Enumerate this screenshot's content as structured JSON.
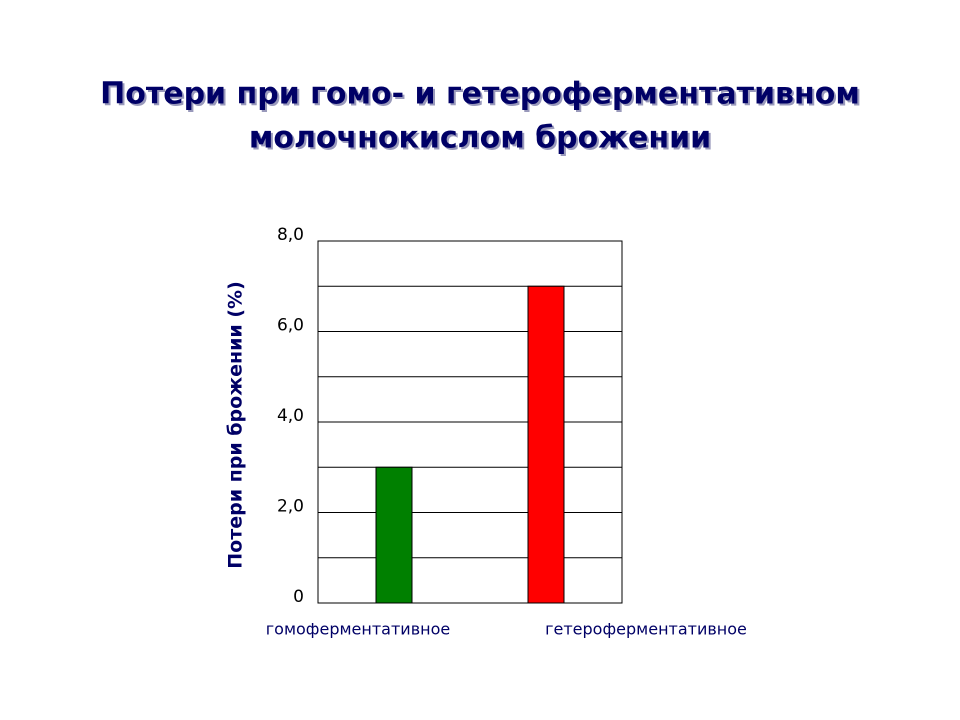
{
  "chart_data": {
    "type": "bar",
    "title": [
      "Потери при гомо- и гетероферментативном",
      "молочнокислом брожении"
    ],
    "y_label": "Потери при брожении  (%)",
    "categories": [
      "гомоферментативное",
      "гетероферментативное"
    ],
    "series": [
      {
        "name": null,
        "colors": [
          "#008000",
          "#ff0000"
        ],
        "values": [
          3.0,
          7.0
        ]
      }
    ],
    "ylim": [
      0,
      8
    ],
    "yticks": [
      0,
      {
        "value": 2,
        "label": "2,0"
      },
      {
        "value": 4,
        "label": "4,0"
      },
      {
        "value": 6,
        "label": "6,0"
      },
      {
        "value": 8,
        "label": "8,0"
      }
    ],
    "minor_yticks": [
      1,
      3,
      5,
      7
    ],
    "grid": true
  }
}
